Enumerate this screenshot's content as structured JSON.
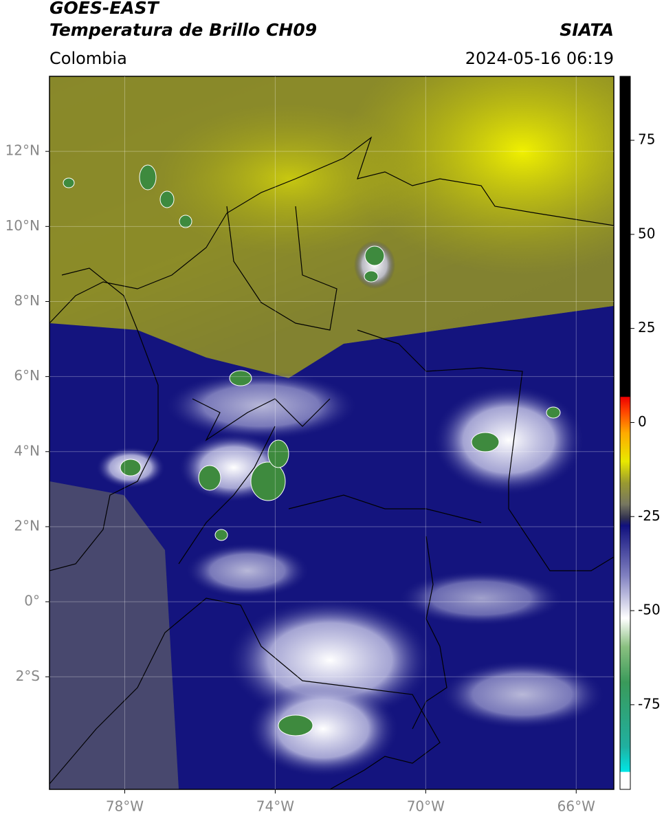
{
  "header": {
    "title": "GOES-EAST",
    "subtitle": "Temperatura de Brillo CH09",
    "source": "SIATA",
    "region": "Colombia",
    "datetime": "2024-05-16 06:19"
  },
  "map": {
    "lon_range": [
      -80,
      -65
    ],
    "lat_range": [
      -5,
      14
    ],
    "lon_ticks": [
      {
        "value": -78,
        "label": "78°W"
      },
      {
        "value": -74,
        "label": "74°W"
      },
      {
        "value": -70,
        "label": "70°W"
      },
      {
        "value": -66,
        "label": "66°W"
      }
    ],
    "lat_ticks": [
      {
        "value": 12,
        "label": "12°N"
      },
      {
        "value": 10,
        "label": "10°N"
      },
      {
        "value": 8,
        "label": "8°N"
      },
      {
        "value": 6,
        "label": "6°N"
      },
      {
        "value": 4,
        "label": "4°N"
      },
      {
        "value": 2,
        "label": "2°N"
      },
      {
        "value": 0,
        "label": "0°"
      },
      {
        "value": -2,
        "label": "2°S"
      }
    ]
  },
  "colorbar": {
    "range": [
      -97.5,
      92
    ],
    "ticks": [
      75,
      50,
      25,
      0,
      -25,
      -50,
      -75
    ]
  }
}
